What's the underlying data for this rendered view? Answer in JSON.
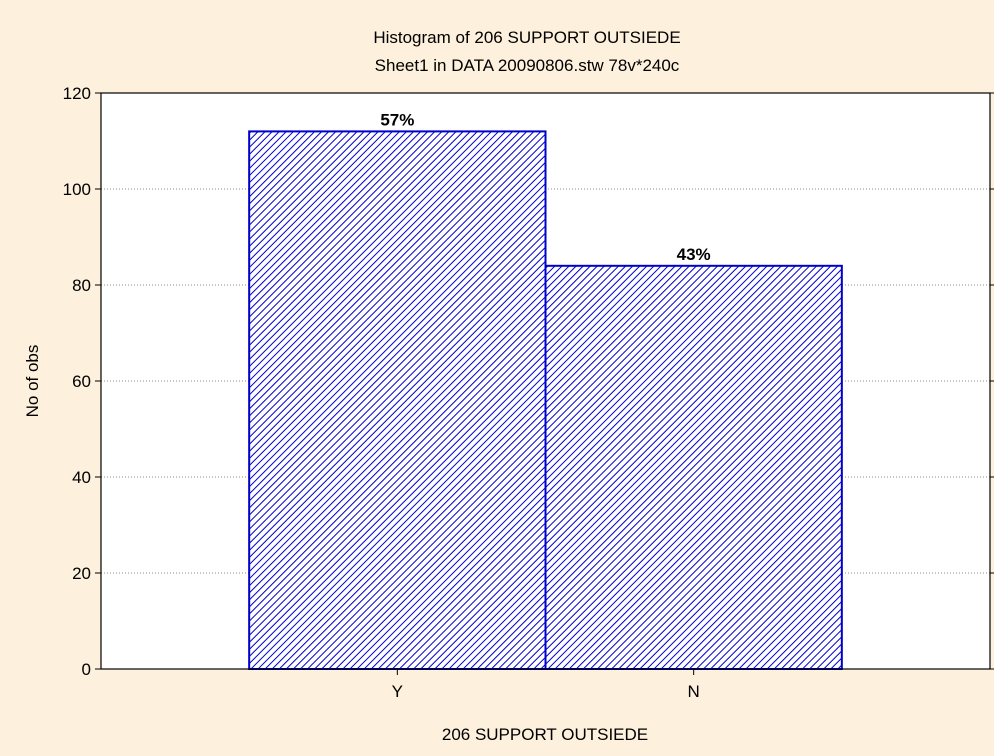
{
  "chart_data": {
    "type": "bar",
    "title": "Histogram of 206 SUPPORT OUTSIEDE",
    "subtitle": "Sheet1 in DATA 20090806.stw 78v*240c",
    "xlabel": "206 SUPPORT OUTSIEDE",
    "ylabel": "No of obs",
    "categories": [
      "Y",
      "N"
    ],
    "values": [
      112,
      84
    ],
    "data_labels": [
      "57%",
      "43%"
    ],
    "ylim": [
      0,
      120
    ],
    "yticks": [
      0,
      20,
      40,
      60,
      80,
      100,
      120
    ],
    "grid": true,
    "bar_fill": "hatched",
    "colors": {
      "bar_stroke": "#0000cc",
      "hatch": "#0000cc",
      "bar_background": "#ffffff",
      "plot_background": "#ffffff",
      "page_background": "#fdf0dc"
    }
  }
}
